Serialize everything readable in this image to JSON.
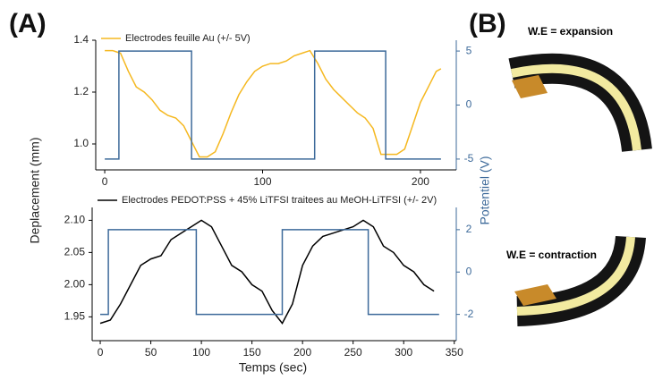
{
  "panel_labels": [
    "(A)",
    "(B)"
  ],
  "axis_labels": {
    "ylabel": "Deplacement (mm)",
    "y2label": "Potentiel (V)",
    "xlabel": "Temps (sec)"
  },
  "diagram": {
    "top_label": "W.E = expansion",
    "bottom_label": "W.E = contraction"
  },
  "chart_data": [
    {
      "type": "line",
      "xlim": [
        -5.7,
        222.7
      ],
      "xticks": [
        0,
        100,
        200
      ],
      "ylim": [
        0.9,
        1.4
      ],
      "yticks": [
        {
          "value": 1.0,
          "label": "1.0"
        },
        {
          "value": 1.2,
          "label": "1.2"
        },
        {
          "value": 1.4,
          "label": "1.4"
        }
      ],
      "y2lim": [
        -6,
        6
      ],
      "y2ticks": [
        -5,
        0,
        5
      ],
      "series": [
        {
          "name": "Electrodes feuille Au (+/- 5V)",
          "color": "#f5b820",
          "x": [
            0,
            5,
            10,
            15,
            20,
            25,
            30,
            35,
            40,
            45,
            50,
            55,
            60,
            65,
            70,
            75,
            80,
            85,
            90,
            95,
            100,
            105,
            110,
            115,
            120,
            125,
            130,
            135,
            140,
            145,
            150,
            155,
            160,
            165,
            170,
            175,
            180,
            185,
            190,
            195,
            200,
            205,
            210,
            213
          ],
          "values": [
            1.36,
            1.36,
            1.35,
            1.28,
            1.22,
            1.2,
            1.17,
            1.13,
            1.11,
            1.1,
            1.07,
            1.01,
            0.95,
            0.95,
            0.97,
            1.04,
            1.12,
            1.19,
            1.24,
            1.28,
            1.3,
            1.31,
            1.31,
            1.32,
            1.34,
            1.35,
            1.36,
            1.31,
            1.25,
            1.21,
            1.18,
            1.15,
            1.12,
            1.1,
            1.06,
            0.96,
            0.96,
            0.96,
            0.98,
            1.07,
            1.16,
            1.22,
            1.28,
            1.29
          ]
        },
        {
          "color": "#3d6a9a",
          "axis": "y2",
          "x": [
            0,
            9,
            9,
            55,
            55,
            133,
            133,
            178,
            178,
            213
          ],
          "values": [
            -5,
            -5,
            5,
            5,
            -5,
            -5,
            5,
            5,
            -5,
            -5
          ]
        }
      ]
    },
    {
      "type": "line",
      "xlim": [
        -8,
        352
      ],
      "xticks": [
        0,
        50,
        100,
        150,
        200,
        250,
        300,
        350
      ],
      "ylim": [
        1.913,
        2.12
      ],
      "yticks": [
        1.95,
        {
          "value": 2.0,
          "label": "2.00"
        },
        2.05,
        {
          "value": 2.1,
          "label": "2.10"
        }
      ],
      "y2lim": [
        -3.24,
        3.05
      ],
      "y2ticks": [
        -2,
        0,
        2
      ],
      "series": [
        {
          "name": "Electrodes PEDOT:PSS + 45% LiTFSI traitees au MeOH-LiTFSI (+/- 2V)",
          "color": "#000000",
          "x": [
            0,
            10,
            20,
            30,
            40,
            50,
            60,
            70,
            80,
            90,
            100,
            110,
            120,
            130,
            140,
            150,
            160,
            170,
            180,
            190,
            200,
            210,
            220,
            230,
            240,
            250,
            260,
            270,
            280,
            290,
            300,
            310,
            320,
            330
          ],
          "values": [
            1.94,
            1.945,
            1.97,
            2.0,
            2.03,
            2.04,
            2.045,
            2.07,
            2.08,
            2.09,
            2.1,
            2.09,
            2.06,
            2.03,
            2.02,
            2.0,
            1.99,
            1.96,
            1.94,
            1.97,
            2.03,
            2.06,
            2.075,
            2.08,
            2.085,
            2.09,
            2.1,
            2.09,
            2.06,
            2.05,
            2.03,
            2.02,
            2.0,
            1.99
          ]
        },
        {
          "color": "#3d6a9a",
          "axis": "y2",
          "x": [
            0,
            8,
            8,
            95,
            95,
            180,
            180,
            265,
            265,
            335
          ],
          "values": [
            -2,
            -2,
            2,
            2,
            -2,
            -2,
            2,
            2,
            -2,
            -2
          ]
        }
      ]
    }
  ]
}
